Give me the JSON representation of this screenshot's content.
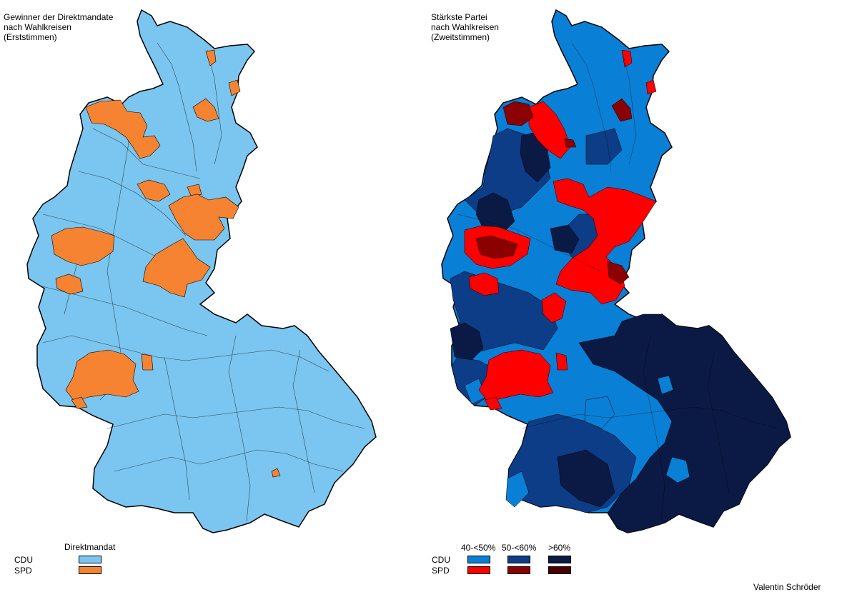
{
  "left_map": {
    "title_lines": [
      "Gewinner der Direktmandate",
      "nach Wahlkreisen",
      "(Erststimmen)"
    ],
    "legend_heading": "Direktmandat",
    "parties": [
      {
        "label": "CDU",
        "color": "#7ac6f0"
      },
      {
        "label": "SPD",
        "color": "#f58332"
      }
    ]
  },
  "right_map": {
    "title_lines": [
      "Stärkste Partei",
      "nach Wahlkreisen",
      "(Zweitstimmen)"
    ],
    "columns": [
      "40-<50%",
      "50-<60%",
      ">60%"
    ],
    "parties": [
      {
        "label": "CDU",
        "colors": [
          "#0a7fd6",
          "#0d3d86",
          "#0b1a45"
        ]
      },
      {
        "label": "SPD",
        "colors": [
          "#ff0000",
          "#8b0000",
          "#4a0000"
        ]
      }
    ]
  },
  "credit": "Valentin Schröder"
}
